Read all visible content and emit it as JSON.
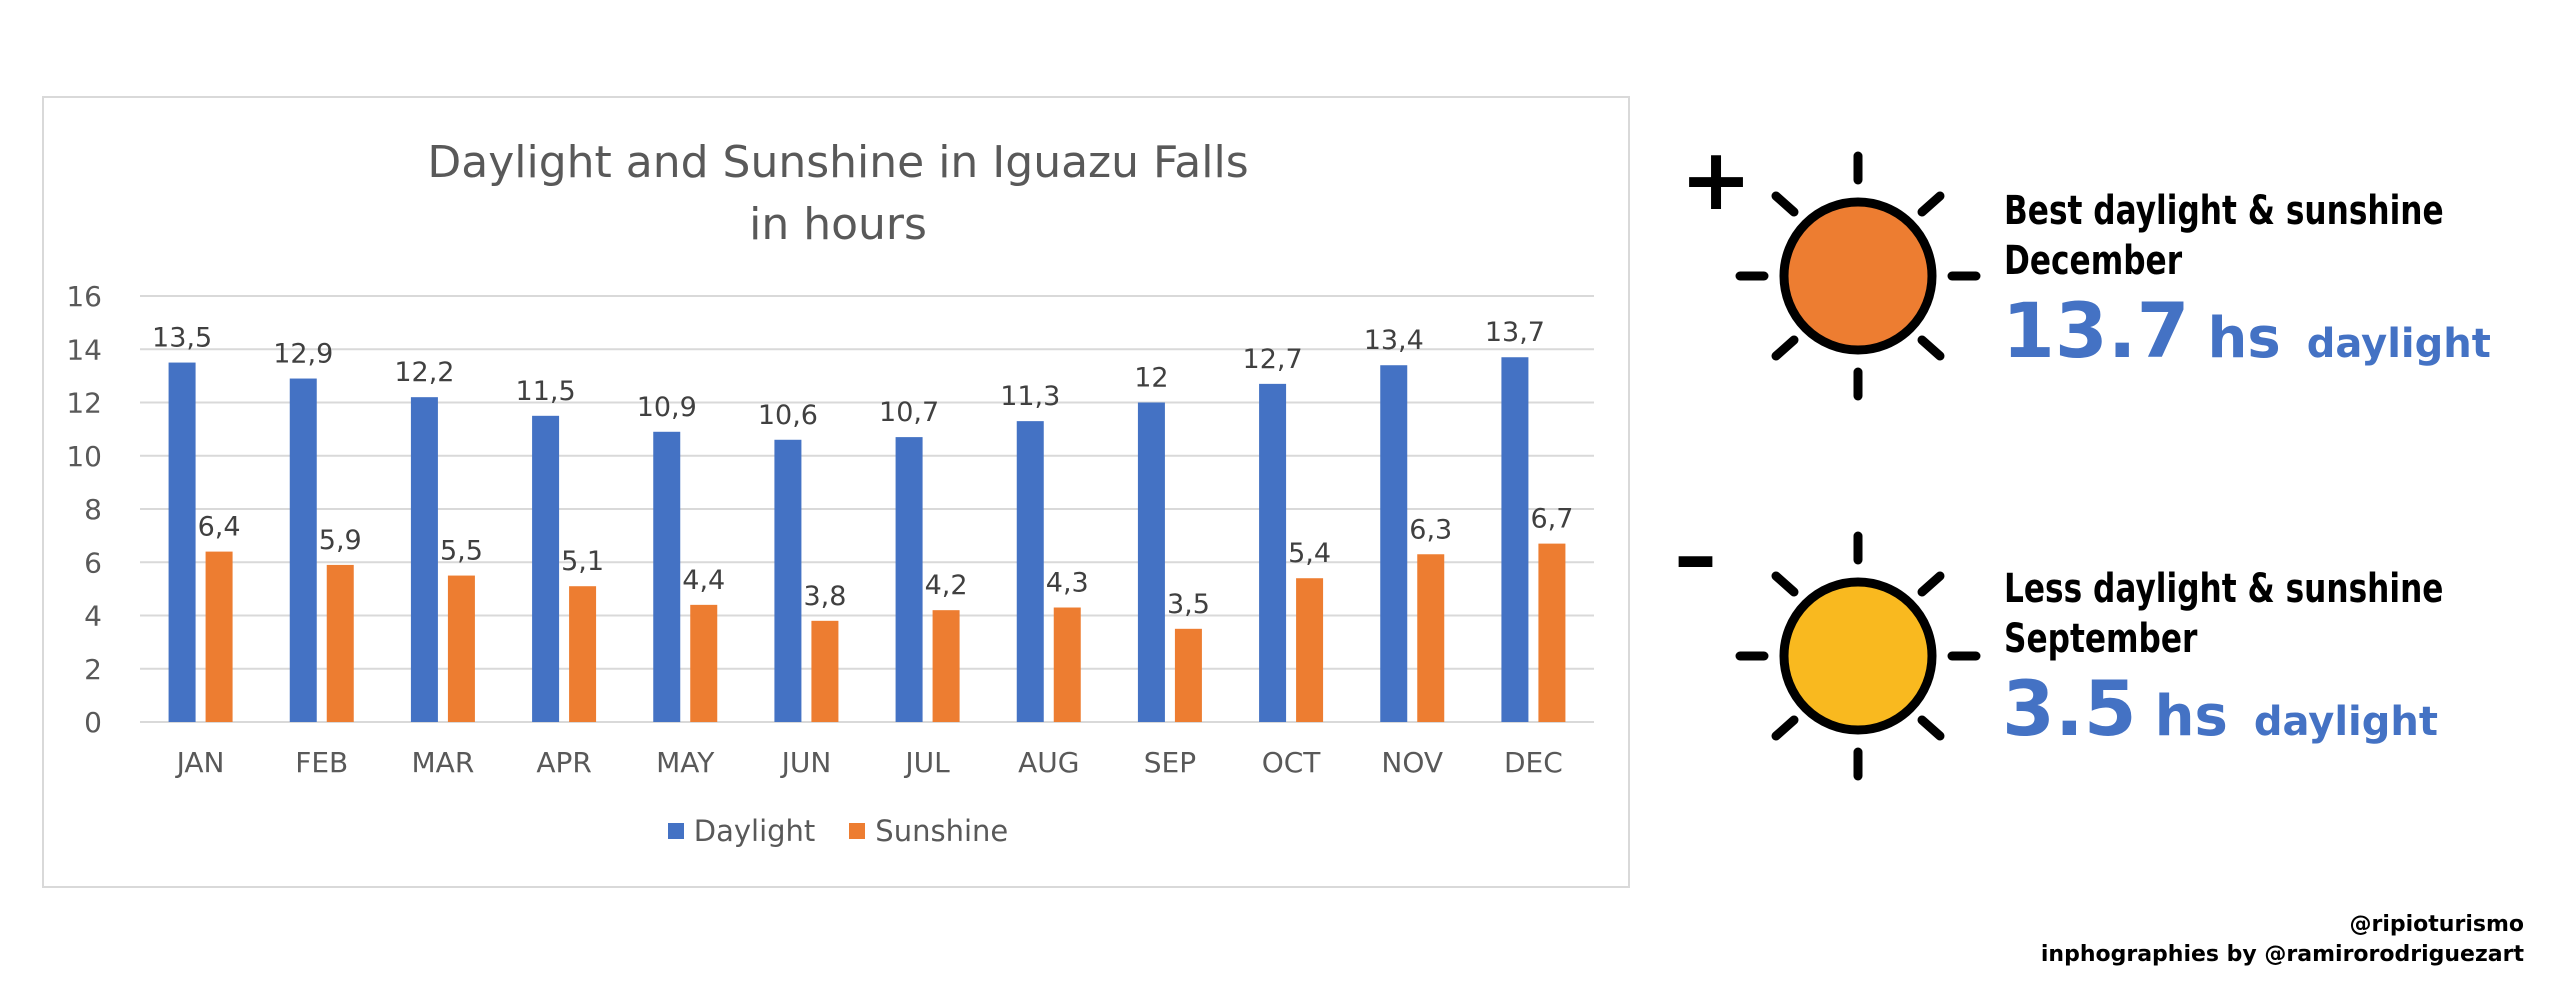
{
  "chart_data": {
    "type": "bar",
    "title_lines": [
      "Daylight and Sunshine in Iguazu Falls",
      "in hours"
    ],
    "categories": [
      "JAN",
      "FEB",
      "MAR",
      "APR",
      "MAY",
      "JUN",
      "JUL",
      "AUG",
      "SEP",
      "OCT",
      "NOV",
      "DEC"
    ],
    "series": [
      {
        "name": "Daylight",
        "color": "#4472c4",
        "values": [
          13.5,
          12.9,
          12.2,
          11.5,
          10.9,
          10.6,
          10.7,
          11.3,
          12,
          12.7,
          13.4,
          13.7
        ],
        "labels": [
          "13,5",
          "12,9",
          "12,2",
          "11,5",
          "10,9",
          "10,6",
          "10,7",
          "11,3",
          "12",
          "12,7",
          "13,4",
          "13,7"
        ]
      },
      {
        "name": "Sunshine",
        "color": "#ed7d31",
        "values": [
          6.4,
          5.9,
          5.5,
          5.1,
          4.4,
          3.8,
          4.2,
          4.3,
          3.5,
          5.4,
          6.3,
          6.7
        ],
        "labels": [
          "6,4",
          "5,9",
          "5,5",
          "5,1",
          "4,4",
          "3,8",
          "4,2",
          "4,3",
          "3,5",
          "5,4",
          "6,3",
          "6,7"
        ]
      }
    ],
    "ylim": [
      0,
      16
    ],
    "yticks": [
      0,
      2,
      4,
      6,
      8,
      10,
      12,
      14,
      16
    ],
    "grid": true,
    "legend_position": "bottom"
  },
  "best": {
    "sign": "+",
    "line1": "Best daylight & sunshine",
    "line2": "December",
    "value": "13.7",
    "unit": "hs",
    "word": "daylight",
    "sun_color": "#ed7d31"
  },
  "worst": {
    "sign": "–",
    "line1": "Less daylight & sunshine",
    "line2": "September",
    "value": "3.5",
    "unit": "hs",
    "word": "daylight",
    "sun_color": "#f9b91f"
  },
  "credits": {
    "line1": "@ripioturismo",
    "line2": "inphographies by @ramirorodriguezart"
  }
}
